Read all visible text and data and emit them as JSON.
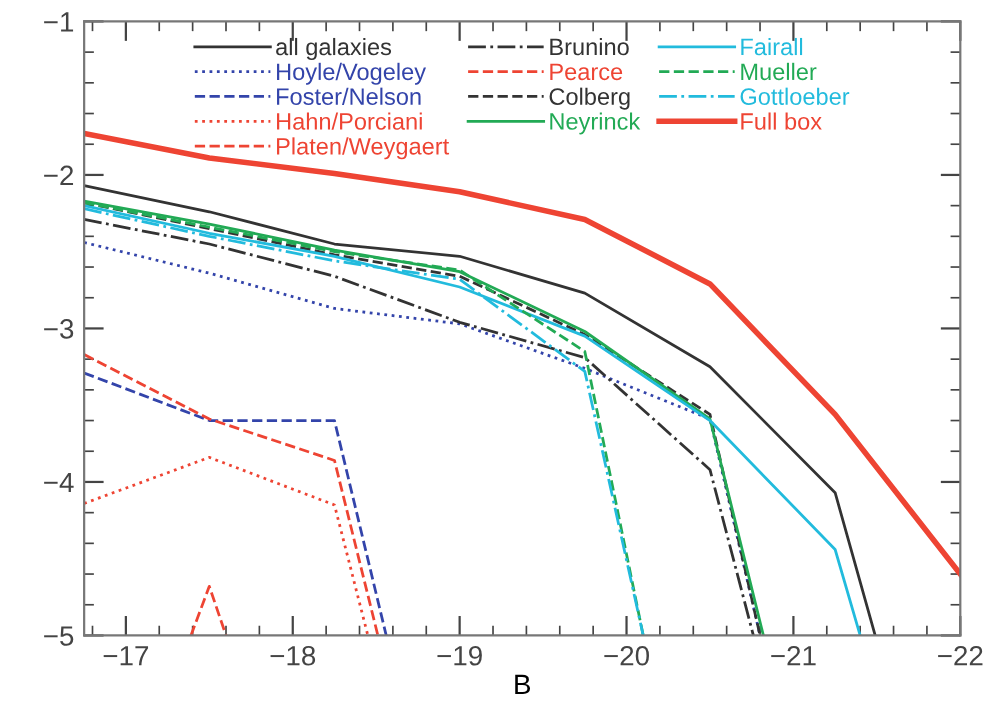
{
  "chart_data": {
    "type": "line",
    "xlabel": "B",
    "xlim": [
      -16.75,
      -22
    ],
    "ylim": [
      -5,
      -1
    ],
    "xticks": [
      -17,
      -18,
      -19,
      -20,
      -21,
      -22
    ],
    "yticks": [
      -5,
      -4,
      -3,
      -2,
      -1
    ],
    "grid": false,
    "legend": "top",
    "marker": "none",
    "x": [
      -16.75,
      -17.5,
      -18.25,
      -19,
      -19.75,
      -20.5,
      -21.25,
      -22
    ],
    "series": [
      {
        "name": "all galaxies",
        "color": "#333333",
        "line_style": "solid",
        "x": [
          -16.75,
          -17.5,
          -18.25,
          -19,
          -19.75,
          -20.5,
          -21.25,
          -21.49
        ],
        "values": [
          -2.07,
          -2.24,
          -2.45,
          -2.53,
          -2.77,
          -3.25,
          -4.07,
          -5
        ]
      },
      {
        "name": "Hoyle/Vogeley",
        "color": "#3344aa",
        "line_style": "dotted",
        "x": [
          -16.75,
          -17.5,
          -18.25,
          -19,
          -19.75,
          -20.5,
          -20.8
        ],
        "values": [
          -2.44,
          -2.64,
          -2.87,
          -2.97,
          -3.26,
          -3.59,
          -5
        ]
      },
      {
        "name": "Foster/Nelson",
        "color": "#3344aa",
        "line_style": "dashed",
        "x": [
          -16.75,
          -17.5,
          -18.25,
          -18.56
        ],
        "values": [
          -3.29,
          -3.6,
          -3.6,
          -5
        ]
      },
      {
        "name": "Hahn/Porciani",
        "color": "#ee4433",
        "line_style": "dotted",
        "x": [
          -16.75,
          -17.5,
          -18.25,
          -18.45
        ],
        "values": [
          -4.14,
          -3.84,
          -4.15,
          -5
        ]
      },
      {
        "name": "Platen/Weygaert",
        "color": "#ee4433",
        "line_style": "dashed",
        "x": [
          -17.39,
          -17.5,
          -17.6
        ],
        "values": [
          -5,
          -4.68,
          -5
        ]
      },
      {
        "name": "Brunino",
        "color": "#333333",
        "line_style": "dash-dot",
        "x": [
          -16.75,
          -17.5,
          -18.25,
          -19,
          -19.75,
          -20.5,
          -20.76
        ],
        "values": [
          -2.29,
          -2.45,
          -2.66,
          -2.96,
          -3.19,
          -3.92,
          -5
        ]
      },
      {
        "name": "Pearce",
        "color": "#ee4433",
        "line_style": "dashed",
        "x": [
          -16.75,
          -17.5,
          -18.25,
          -18.51
        ],
        "values": [
          -3.17,
          -3.59,
          -3.86,
          -5
        ]
      },
      {
        "name": "Colberg",
        "color": "#333333",
        "line_style": "dashed",
        "x": [
          -16.75,
          -17.5,
          -18.25,
          -19,
          -19.75,
          -20.5,
          -20.8
        ],
        "values": [
          -2.18,
          -2.35,
          -2.52,
          -2.66,
          -3.04,
          -3.56,
          -5
        ]
      },
      {
        "name": "Neyrinck",
        "color": "#22aa55",
        "line_style": "solid",
        "x": [
          -16.75,
          -17.5,
          -18.25,
          -19,
          -19.75,
          -20.5,
          -20.82
        ],
        "values": [
          -2.17,
          -2.32,
          -2.49,
          -2.63,
          -3.02,
          -3.59,
          -5
        ]
      },
      {
        "name": "Fairall",
        "color": "#22bbdd",
        "line_style": "solid",
        "x": [
          -16.75,
          -17.5,
          -18.25,
          -19,
          -19.75,
          -20.5,
          -21.25,
          -21.4
        ],
        "values": [
          -2.2,
          -2.38,
          -2.53,
          -2.73,
          -3.05,
          -3.6,
          -4.44,
          -5
        ]
      },
      {
        "name": "Mueller",
        "color": "#22aa55",
        "line_style": "dashed",
        "x": [
          -16.75,
          -17.5,
          -18.25,
          -19,
          -19.75,
          -20.1
        ],
        "values": [
          -2.18,
          -2.34,
          -2.5,
          -2.62,
          -3.15,
          -5
        ]
      },
      {
        "name": "Gottloeber",
        "color": "#22bbdd",
        "line_style": "dash-dot",
        "x": [
          -16.75,
          -17.5,
          -18.25,
          -19,
          -19.75,
          -20.1
        ],
        "values": [
          -2.22,
          -2.4,
          -2.56,
          -2.68,
          -3.28,
          -5
        ]
      },
      {
        "name": "Full box",
        "color": "#ee4433",
        "line_style": "solid",
        "values": [
          -1.73,
          -1.89,
          -1.99,
          -2.11,
          -2.29,
          -2.71,
          -3.56,
          -4.6
        ]
      }
    ]
  }
}
